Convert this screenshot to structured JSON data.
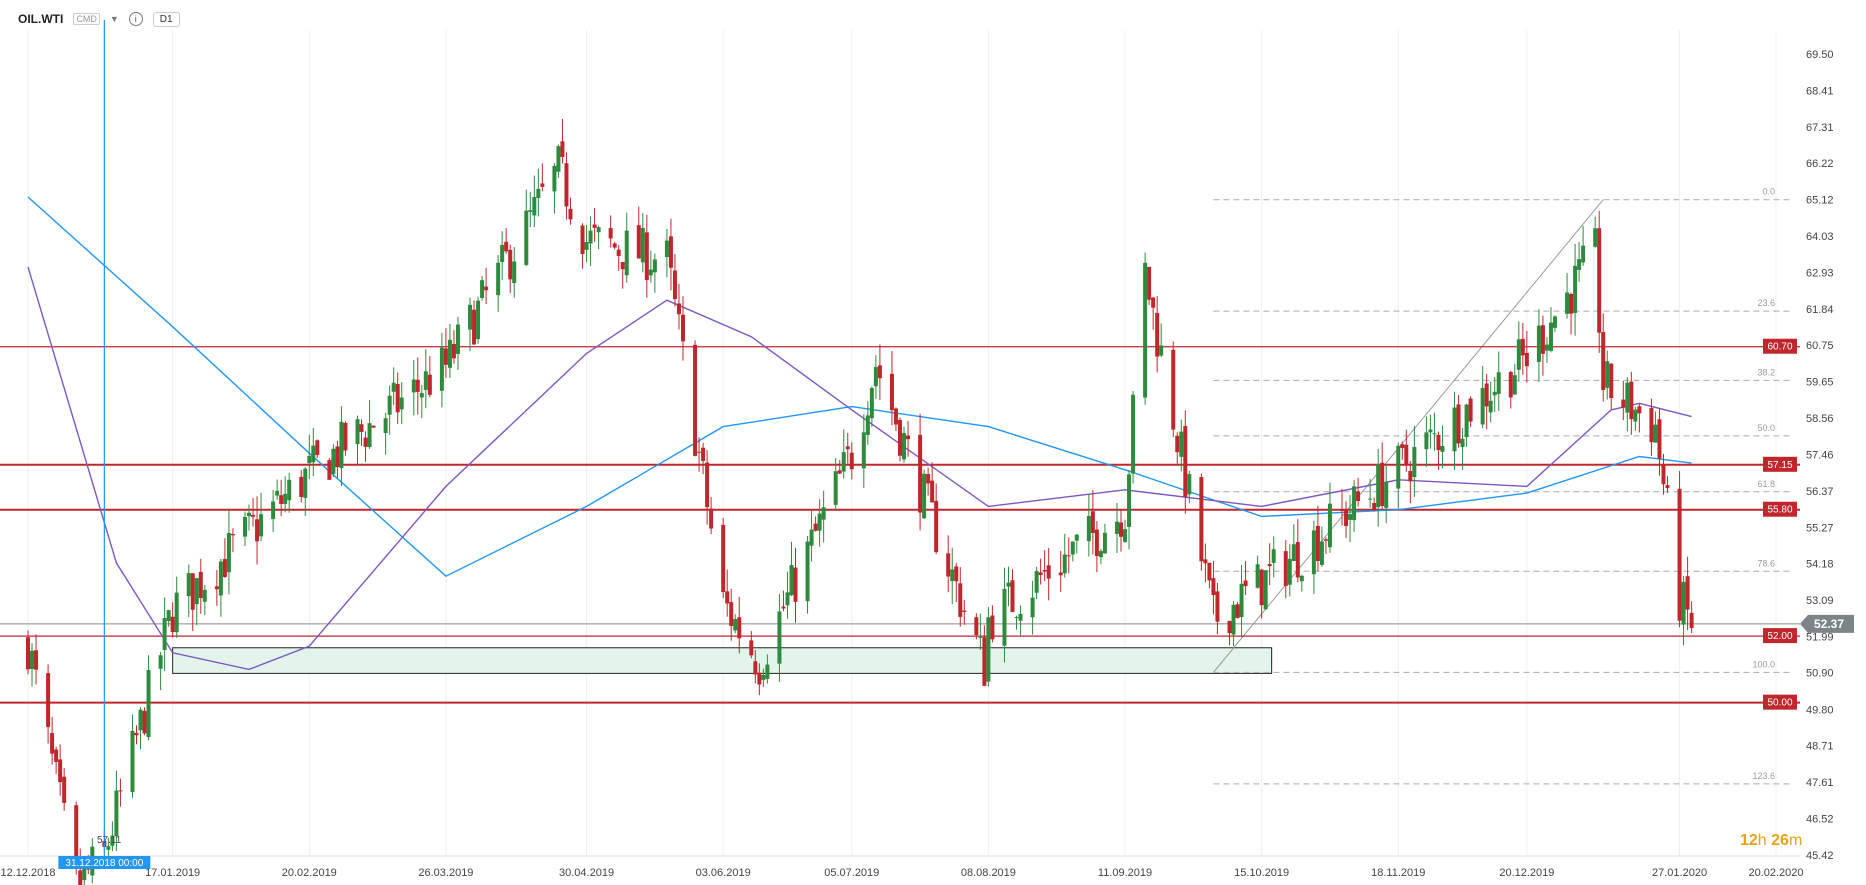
{
  "header": {
    "symbol": "OIL.WTI",
    "source": "CMD",
    "timeframe": "D1",
    "info_icon": "info-icon"
  },
  "countdown": {
    "hours": "12",
    "h_unit": "h",
    "minutes": "26",
    "m_unit": "m"
  },
  "crosshair": {
    "date_label": "31.12.2018 00:00",
    "series_value": "57.11"
  },
  "colors": {
    "bull": "#2e8b3e",
    "bear": "#c0272d",
    "sma_blue": "#2196f3",
    "sma_purple": "#7e57c2",
    "level_line": "#c0272d",
    "fib": "#aaaaaa",
    "zone_fill": "#e3f5ea",
    "price_tag": "#7b8489"
  },
  "chart_data": {
    "type": "candlestick",
    "ylim": [
      43.42,
      70.0
    ],
    "yticks": [
      "69.50",
      "68.41",
      "67.31",
      "66.22",
      "65.12",
      "64.03",
      "62.93",
      "61.84",
      "60.75",
      "59.65",
      "58.56",
      "57.46",
      "56.37",
      "55.27",
      "54.18",
      "53.09",
      "51.99",
      "50.90",
      "49.80",
      "48.71",
      "47.61",
      "46.52",
      "45.42"
    ],
    "xticks": [
      "12.12.2018",
      "17.01.2019",
      "20.02.2019",
      "26.03.2019",
      "30.04.2019",
      "03.06.2019",
      "05.07.2019",
      "08.08.2019",
      "11.09.2019",
      "15.10.2019",
      "18.11.2019",
      "20.12.2019",
      "27.01.2020",
      "20.02.2020"
    ],
    "current_price": "52.37",
    "horizontal_levels": [
      {
        "label": "60.70",
        "value": 60.7
      },
      {
        "label": "57.15",
        "value": 57.15
      },
      {
        "label": "55.80",
        "value": 55.8
      },
      {
        "label": "52.00",
        "value": 52.0
      },
      {
        "label": "50.00",
        "value": 50.0
      }
    ],
    "fibonacci": [
      {
        "label": "0.0",
        "value": 65.12
      },
      {
        "label": "23.6",
        "value": 61.77
      },
      {
        "label": "38.2",
        "value": 59.69
      },
      {
        "label": "50.0",
        "value": 58.02
      },
      {
        "label": "61.8",
        "value": 56.34
      },
      {
        "label": "78.6",
        "value": 53.95
      },
      {
        "label": "100.0",
        "value": 50.91
      },
      {
        "label": "123.6",
        "value": 47.56
      }
    ],
    "ohlc_keypoints": [
      {
        "date": "2018-12-12",
        "close": 51.8
      },
      {
        "date": "2018-12-24",
        "close": 44.5
      },
      {
        "date": "2018-12-31",
        "close": 45.4
      },
      {
        "date": "2019-01-17",
        "close": 52.8
      },
      {
        "date": "2019-02-20",
        "close": 56.9
      },
      {
        "date": "2019-03-26",
        "close": 60.1
      },
      {
        "date": "2019-04-16",
        "close": 64.5
      },
      {
        "date": "2019-04-23",
        "close": 66.0
      },
      {
        "date": "2019-04-30",
        "close": 63.9
      },
      {
        "date": "2019-05-20",
        "close": 63.3
      },
      {
        "date": "2019-06-03",
        "close": 53.0
      },
      {
        "date": "2019-06-12",
        "close": 51.2
      },
      {
        "date": "2019-07-05",
        "close": 57.5
      },
      {
        "date": "2019-07-11",
        "close": 60.2
      },
      {
        "date": "2019-08-07",
        "close": 51.1
      },
      {
        "date": "2019-08-08",
        "close": 52.5
      },
      {
        "date": "2019-09-11",
        "close": 55.8
      },
      {
        "date": "2019-09-16",
        "close": 62.9
      },
      {
        "date": "2019-10-03",
        "close": 52.5
      },
      {
        "date": "2019-10-15",
        "close": 53.6
      },
      {
        "date": "2019-11-18",
        "close": 57.0
      },
      {
        "date": "2019-12-20",
        "close": 60.4
      },
      {
        "date": "2020-01-06",
        "close": 63.5
      },
      {
        "date": "2020-01-08",
        "close": 59.6
      },
      {
        "date": "2020-01-21",
        "close": 58.3
      },
      {
        "date": "2020-01-27",
        "close": 53.1
      },
      {
        "date": "2020-01-30",
        "close": 52.37
      }
    ],
    "sma_blue": [
      {
        "date": "2018-12-12",
        "value": 65.2
      },
      {
        "date": "2019-01-17",
        "value": 61.3
      },
      {
        "date": "2019-02-20",
        "value": 57.5
      },
      {
        "date": "2019-03-26",
        "value": 53.8
      },
      {
        "date": "2019-04-30",
        "value": 55.9
      },
      {
        "date": "2019-06-03",
        "value": 58.3
      },
      {
        "date": "2019-07-05",
        "value": 58.9
      },
      {
        "date": "2019-08-08",
        "value": 58.3
      },
      {
        "date": "2019-09-11",
        "value": 57.0
      },
      {
        "date": "2019-10-15",
        "value": 55.6
      },
      {
        "date": "2019-11-18",
        "value": 55.8
      },
      {
        "date": "2019-12-20",
        "value": 56.3
      },
      {
        "date": "2020-01-17",
        "value": 57.4
      },
      {
        "date": "2020-01-30",
        "value": 57.2
      }
    ],
    "sma_purple": [
      {
        "date": "2018-12-12",
        "value": 63.1
      },
      {
        "date": "2019-01-03",
        "value": 54.2
      },
      {
        "date": "2019-01-17",
        "value": 51.5
      },
      {
        "date": "2019-02-05",
        "value": 51.0
      },
      {
        "date": "2019-02-20",
        "value": 51.7
      },
      {
        "date": "2019-03-26",
        "value": 56.5
      },
      {
        "date": "2019-04-30",
        "value": 60.5
      },
      {
        "date": "2019-05-20",
        "value": 62.1
      },
      {
        "date": "2019-06-10",
        "value": 61.0
      },
      {
        "date": "2019-07-05",
        "value": 58.8
      },
      {
        "date": "2019-08-08",
        "value": 55.9
      },
      {
        "date": "2019-09-11",
        "value": 56.4
      },
      {
        "date": "2019-10-15",
        "value": 55.9
      },
      {
        "date": "2019-11-18",
        "value": 56.7
      },
      {
        "date": "2019-12-20",
        "value": 56.5
      },
      {
        "date": "2020-01-10",
        "value": 58.8
      },
      {
        "date": "2020-01-17",
        "value": 59.0
      },
      {
        "date": "2020-01-30",
        "value": 58.6
      }
    ]
  }
}
